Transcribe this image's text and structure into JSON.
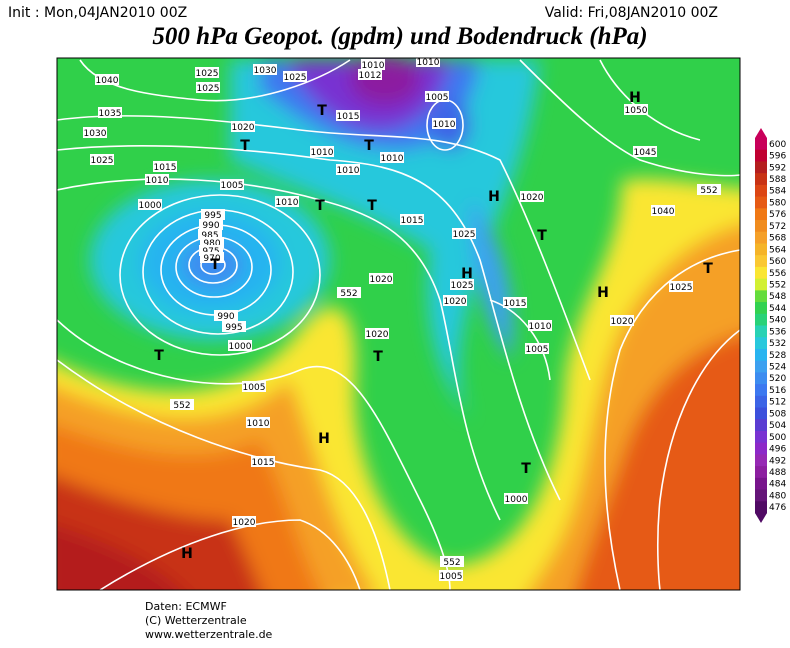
{
  "header": {
    "init": "Init : Mon,04JAN2010 00Z",
    "valid": "Valid: Fri,08JAN2010 00Z",
    "title": "500 hPa Geopot. (gpdm) und Bodendruck (hPa)"
  },
  "map": {
    "labels": [
      "1040",
      "1035",
      "1030",
      "1025",
      "1025",
      "1025",
      "1030",
      "1025",
      "1020",
      "1015",
      "1010",
      "1005",
      "1000",
      "1010",
      "1010",
      "1010",
      "1010",
      "1015",
      "1010",
      "1012",
      "1005",
      "1010",
      "1010",
      "1050",
      "1045",
      "1040",
      "1020",
      "1015",
      "1025",
      "1025",
      "1020",
      "1015",
      "1010",
      "1005",
      "1020",
      "1020",
      "1005",
      "1010",
      "1015",
      "1020",
      "1000",
      "1005",
      "1025",
      "1020",
      "995",
      "990",
      "985",
      "980",
      "975",
      "970",
      "990",
      "995",
      "1000",
      "552",
      "552",
      "552",
      "552"
    ],
    "markers": [
      "H",
      "T",
      "T",
      "T",
      "T",
      "T",
      "T",
      "T",
      "H",
      "T",
      "H",
      "H",
      "T",
      "H",
      "T",
      "H",
      "T"
    ]
  },
  "legend": {
    "levels": [
      600,
      596,
      592,
      588,
      584,
      580,
      576,
      572,
      568,
      564,
      560,
      556,
      552,
      548,
      544,
      540,
      536,
      532,
      528,
      524,
      520,
      516,
      512,
      508,
      504,
      500,
      496,
      492,
      488,
      484,
      480,
      476
    ],
    "colors": [
      "#c8005a",
      "#c00030",
      "#b41e1e",
      "#c83214",
      "#dc4614",
      "#e65a14",
      "#f07814",
      "#f08c1e",
      "#f5a028",
      "#f5b428",
      "#fac832",
      "#fae632",
      "#d2f032",
      "#64dc3c",
      "#32d250",
      "#28d278",
      "#28d2b4",
      "#28c8dc",
      "#28b4f0",
      "#3ca0f0",
      "#3c8cf0",
      "#3c78f0",
      "#3c64e6",
      "#3c50dc",
      "#5a3cd2",
      "#7832d2",
      "#8c28c8",
      "#9628b4",
      "#8c1ea0",
      "#78148c",
      "#641478",
      "#500a64"
    ]
  },
  "footer": {
    "lines": [
      "Daten: ECMWF",
      "(C) Wetterzentrale",
      "www.wetterzentrale.de"
    ]
  }
}
